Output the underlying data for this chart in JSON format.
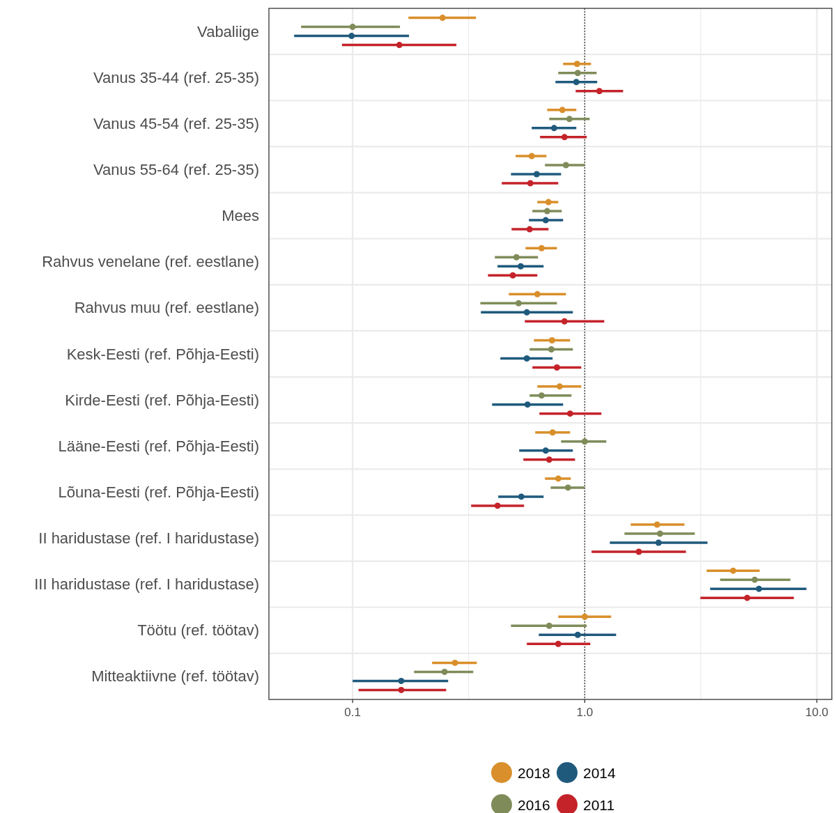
{
  "chart_data": {
    "type": "scatter",
    "orientation": "horizontal",
    "log": "x",
    "marker": "circle",
    "grid": true,
    "legend": "bottom",
    "categories": [
      "Vabaliige",
      "Vanus 35-44 (ref. 25-35)",
      "Vanus 45-54 (ref. 25-35)",
      "Vanus 55-64 (ref. 25-35)",
      "Mees",
      "Rahvus venelane (ref. eestlane)",
      "Rahvus muu (ref. eestlane)",
      "Kesk-Eesti (ref. Põhja-Eesti)",
      "Kirde-Eesti (ref. Põhja-Eesti)",
      "Lääne-Eesti (ref. Põhja-Eesti)",
      "Lõuna-Eesti (ref. Põhja-Eesti)",
      "II haridustase (ref. I haridustase)",
      "III haridustase (ref. I haridustase)",
      "Töötu (ref. töötav)",
      "Mitteaktiivne (ref. töötav)"
    ],
    "xlim": [
      0.0436,
      11.6
    ],
    "xticks": [
      {
        "value": 0.1,
        "label": "0.1"
      },
      {
        "value": 0.316,
        "label": null
      },
      {
        "value": 1,
        "label": "1.0"
      },
      {
        "value": 3.16,
        "label": null
      },
      {
        "value": 10,
        "label": "10.0"
      }
    ],
    "ref_lines": [
      {
        "axis": "x",
        "value": 1,
        "color": "#333333",
        "line_style": "dotted"
      }
    ],
    "series": [
      {
        "name": "2018",
        "color": "#d98f2b",
        "values": [
          0.244,
          0.927,
          0.801,
          0.591,
          0.698,
          0.652,
          0.625,
          0.723,
          0.78,
          0.727,
          0.769,
          2.05,
          4.36,
          1.0,
          0.276
        ],
        "errors": [
          [
            0.174,
            0.34
          ],
          [
            0.807,
            1.064
          ],
          [
            0.689,
            0.92
          ],
          [
            0.504,
            0.684
          ],
          [
            0.625,
            0.769
          ],
          [
            0.556,
            0.759
          ],
          [
            0.471,
            0.83
          ],
          [
            0.604,
            0.865
          ],
          [
            0.625,
            0.966
          ],
          [
            0.612,
            0.865
          ],
          [
            0.674,
            0.871
          ],
          [
            1.578,
            2.69
          ],
          [
            3.35,
            5.67
          ],
          [
            0.769,
            1.3
          ],
          [
            0.22,
            0.343
          ]
        ]
      },
      {
        "name": "2016",
        "color": "#7f8c5a",
        "values": [
          0.1,
          0.933,
          0.859,
          0.83,
          0.689,
          0.508,
          0.519,
          0.718,
          0.652,
          1.0,
          0.847,
          2.11,
          5.4,
          0.703,
          0.249
        ],
        "errors": [
          [
            0.06,
            0.16
          ],
          [
            0.769,
            1.125
          ],
          [
            0.703,
            1.05
          ],
          [
            0.674,
            1.0
          ],
          [
            0.595,
            0.796
          ],
          [
            0.41,
            0.629
          ],
          [
            0.355,
            0.759
          ],
          [
            0.579,
            0.889
          ],
          [
            0.579,
            0.877
          ],
          [
            0.791,
            1.239
          ],
          [
            0.713,
            1.0
          ],
          [
            1.483,
            2.98
          ],
          [
            3.83,
            7.69
          ],
          [
            0.481,
            1.02
          ],
          [
            0.184,
            0.331
          ]
        ]
      },
      {
        "name": "2014",
        "color": "#1f5a7d",
        "values": [
          0.099,
          0.92,
          0.738,
          0.621,
          0.679,
          0.53,
          0.563,
          0.563,
          0.567,
          0.679,
          0.533,
          2.08,
          5.63,
          0.933,
          0.162
        ],
        "errors": [
          [
            0.056,
            0.175
          ],
          [
            0.748,
            1.132
          ],
          [
            0.591,
            0.92
          ],
          [
            0.481,
            0.791
          ],
          [
            0.575,
            0.807
          ],
          [
            0.421,
            0.665
          ],
          [
            0.357,
            0.889
          ],
          [
            0.433,
            0.727
          ],
          [
            0.399,
            0.807
          ],
          [
            0.522,
            0.889
          ],
          [
            0.424,
            0.665
          ],
          [
            1.283,
            3.38
          ],
          [
            3.47,
            9.02
          ],
          [
            0.634,
            1.365
          ],
          [
            0.1,
            0.258
          ]
        ]
      },
      {
        "name": "2011",
        "color": "#c4232a",
        "values": [
          0.159,
          1.156,
          0.818,
          0.583,
          0.579,
          0.49,
          0.818,
          0.759,
          0.865,
          0.703,
          0.421,
          1.71,
          5.01,
          0.769,
          0.162
        ],
        "errors": [
          [
            0.09,
            0.28
          ],
          [
            0.914,
            1.463
          ],
          [
            0.642,
            1.02
          ],
          [
            0.439,
            0.769
          ],
          [
            0.484,
            0.698
          ],
          [
            0.383,
            0.625
          ],
          [
            0.552,
            1.214
          ],
          [
            0.595,
            0.966
          ],
          [
            0.638,
            1.18
          ],
          [
            0.544,
            0.908
          ],
          [
            0.324,
            0.548
          ],
          [
            1.07,
            2.73
          ],
          [
            3.15,
            7.96
          ],
          [
            0.563,
            1.057
          ],
          [
            0.106,
            0.253
          ]
        ]
      }
    ]
  }
}
